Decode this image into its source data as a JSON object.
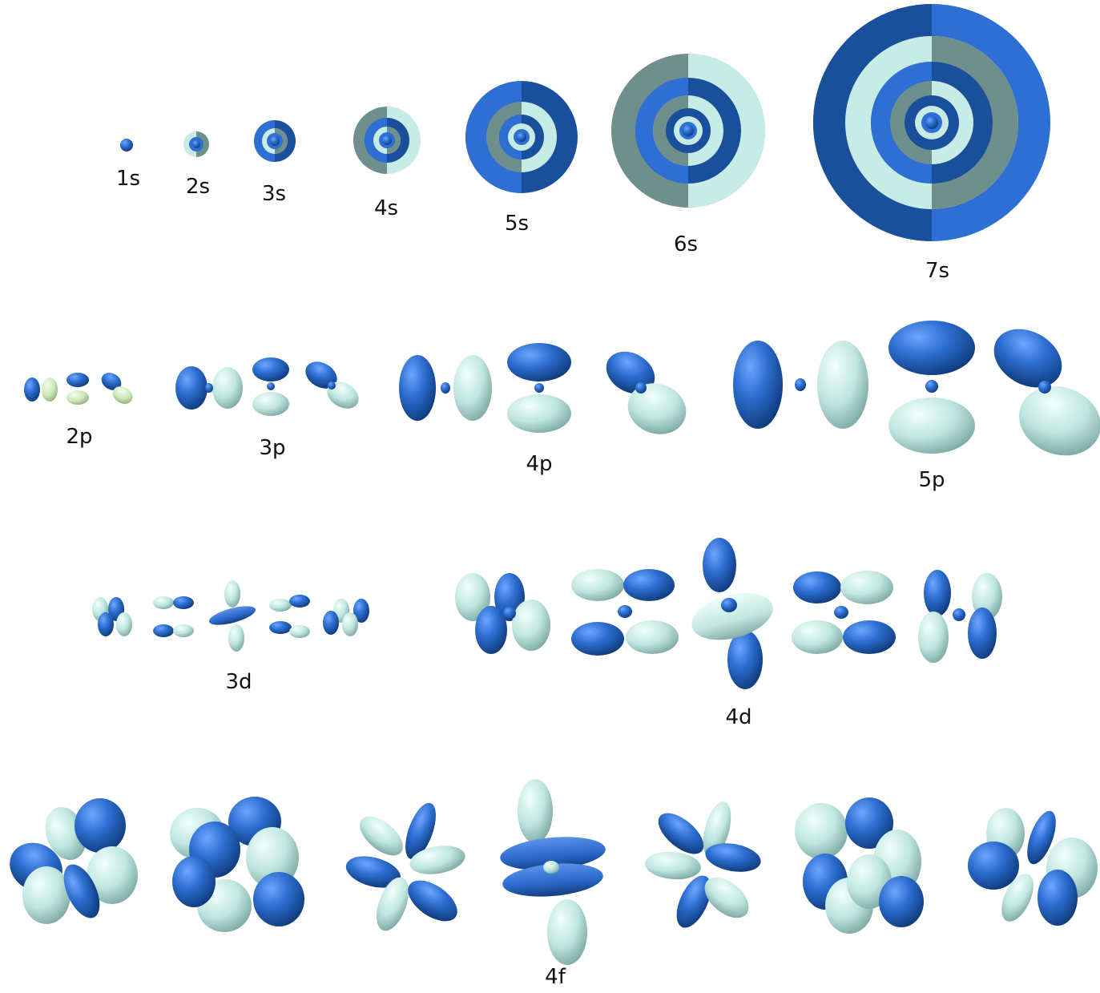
{
  "colors": {
    "dark_blue": "#1a4f9c",
    "blue": "#2d6fd2",
    "light_teal": "#c7ece6",
    "gray_teal": "#6f8f8d",
    "pale_green": "#d7efc5"
  },
  "labels": {
    "s1": "1s",
    "s2": "2s",
    "s3": "3s",
    "s4": "4s",
    "s5": "5s",
    "s6": "6s",
    "s7": "7s",
    "p2": "2p",
    "p3": "3p",
    "p4": "4p",
    "p5": "5p",
    "d3": "3d",
    "d4": "4d",
    "f4": "4f"
  }
}
